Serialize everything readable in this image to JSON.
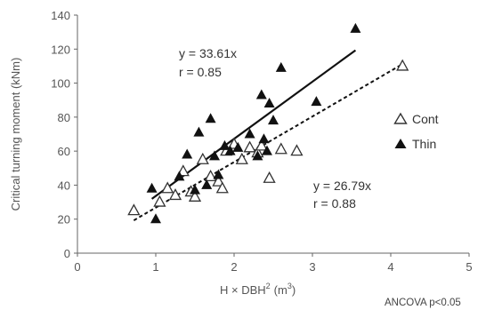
{
  "chart_data": {
    "type": "scatter",
    "xlabel": "H × DBH",
    "xlabel_sup": "2",
    "xlabel_unit": "(m",
    "xlabel_unit_sup": "3",
    "xlabel_close": ")",
    "ylabel": "Critical turning moment (kNm)",
    "xlim": [
      0,
      5
    ],
    "ylim": [
      0,
      140
    ],
    "xticks": [
      "0",
      "1",
      "2",
      "3",
      "4",
      "5"
    ],
    "yticks": [
      "0",
      "20",
      "40",
      "60",
      "80",
      "100",
      "120",
      "140"
    ],
    "grid": false,
    "legend_placement": "right",
    "series": [
      {
        "name": "Cont",
        "marker": "open-triangle",
        "color": "#333333",
        "points": [
          [
            0.72,
            25
          ],
          [
            1.05,
            30
          ],
          [
            1.15,
            38
          ],
          [
            1.25,
            34
          ],
          [
            1.35,
            48
          ],
          [
            1.45,
            36
          ],
          [
            1.5,
            33
          ],
          [
            1.6,
            55
          ],
          [
            1.7,
            45
          ],
          [
            1.8,
            42
          ],
          [
            1.85,
            38
          ],
          [
            1.9,
            60
          ],
          [
            2.0,
            64
          ],
          [
            2.1,
            55
          ],
          [
            2.2,
            62
          ],
          [
            2.3,
            59
          ],
          [
            2.35,
            63
          ],
          [
            2.45,
            44
          ],
          [
            2.6,
            61
          ],
          [
            2.8,
            60
          ],
          [
            4.15,
            110
          ]
        ]
      },
      {
        "name": "Thin",
        "marker": "filled-triangle",
        "color": "#111111",
        "points": [
          [
            0.95,
            38
          ],
          [
            1.0,
            20
          ],
          [
            1.3,
            45
          ],
          [
            1.4,
            58
          ],
          [
            1.5,
            37
          ],
          [
            1.55,
            71
          ],
          [
            1.65,
            40
          ],
          [
            1.7,
            79
          ],
          [
            1.75,
            57
          ],
          [
            1.8,
            46
          ],
          [
            1.88,
            63
          ],
          [
            1.95,
            60
          ],
          [
            2.05,
            62
          ],
          [
            2.2,
            70
          ],
          [
            2.3,
            57
          ],
          [
            2.35,
            93
          ],
          [
            2.38,
            67
          ],
          [
            2.42,
            60
          ],
          [
            2.45,
            88
          ],
          [
            2.5,
            78
          ],
          [
            2.6,
            109
          ],
          [
            3.05,
            89
          ],
          [
            3.55,
            132
          ]
        ]
      }
    ],
    "fit_lines": [
      {
        "series": "Thin",
        "slope": 33.61,
        "x_range": [
          0.95,
          3.55
        ],
        "style": "solid"
      },
      {
        "series": "Cont",
        "slope": 26.79,
        "x_range": [
          0.72,
          4.15
        ],
        "style": "dashed"
      }
    ],
    "annotations": {
      "thin_eq": "y = 33.61x",
      "thin_r": "r = 0.85",
      "cont_eq": "y = 26.79x",
      "cont_r": "r = 0.88",
      "ancova": "ANCOVA p<0.05"
    }
  }
}
